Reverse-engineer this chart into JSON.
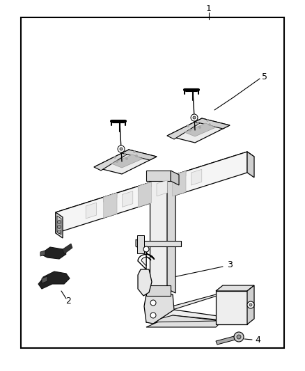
{
  "figsize": [
    4.38,
    5.33
  ],
  "dpi": 100,
  "bg": "#ffffff",
  "lc": "#000000",
  "fc_light": "#f0f0f0",
  "fc_mid": "#d8d8d8",
  "fc_dark": "#b0b0b0",
  "fc_black": "#111111",
  "border": [
    0.07,
    0.04,
    0.87,
    0.9
  ]
}
